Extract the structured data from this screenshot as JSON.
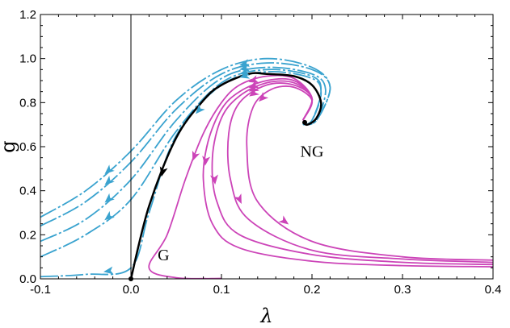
{
  "chart_data": {
    "type": "line",
    "title": "",
    "xlabel": "λ",
    "ylabel": "g",
    "xlim": [
      -0.1,
      0.4
    ],
    "ylim": [
      0.0,
      1.2
    ],
    "x_ticks": [
      "-0.1",
      "0.0",
      "0.1",
      "0.2",
      "0.3",
      "0.4"
    ],
    "x_tick_values": [
      -0.1,
      0.0,
      0.1,
      0.2,
      0.3,
      0.4
    ],
    "y_ticks": [
      "0.0",
      "0.2",
      "0.4",
      "0.6",
      "0.8",
      "1.0",
      "1.2"
    ],
    "y_tick_values": [
      0.0,
      0.2,
      0.4,
      0.6,
      0.8,
      1.0,
      1.2
    ],
    "grid": false,
    "annotations": [
      {
        "text": "NG",
        "x": 0.2,
        "y": 0.555
      },
      {
        "text": "G",
        "x": 0.036,
        "y": 0.085
      }
    ],
    "colors": {
      "uv_trajectory": "#000000",
      "blue_flows": "#3aa3cf",
      "magenta_flows": "#cc44b8"
    },
    "series": [
      {
        "group": "blue",
        "points": [
          [
            -0.1,
            0.28
          ],
          [
            -0.05,
            0.4
          ],
          [
            0.0,
            0.58
          ],
          [
            0.05,
            0.81
          ],
          [
            0.1,
            0.95
          ],
          [
            0.15,
            1.0
          ],
          [
            0.2,
            0.96
          ],
          [
            0.22,
            0.87
          ],
          [
            0.205,
            0.72
          ],
          [
            0.19,
            0.7
          ]
        ]
      },
      {
        "group": "blue",
        "points": [
          [
            -0.1,
            0.24
          ],
          [
            -0.05,
            0.35
          ],
          [
            0.0,
            0.53
          ],
          [
            0.05,
            0.77
          ],
          [
            0.1,
            0.93
          ],
          [
            0.15,
            0.98
          ],
          [
            0.2,
            0.95
          ],
          [
            0.22,
            0.87
          ],
          [
            0.205,
            0.72
          ],
          [
            0.19,
            0.7
          ]
        ]
      },
      {
        "group": "blue",
        "points": [
          [
            -0.1,
            0.17
          ],
          [
            -0.05,
            0.27
          ],
          [
            0.0,
            0.45
          ],
          [
            0.05,
            0.72
          ],
          [
            0.1,
            0.91
          ],
          [
            0.15,
            0.96
          ],
          [
            0.2,
            0.93
          ],
          [
            0.215,
            0.86
          ],
          [
            0.205,
            0.72
          ],
          [
            0.19,
            0.7
          ]
        ]
      },
      {
        "group": "blue",
        "points": [
          [
            -0.1,
            0.1
          ],
          [
            -0.05,
            0.2
          ],
          [
            0.0,
            0.36
          ],
          [
            0.05,
            0.67
          ],
          [
            0.1,
            0.89
          ],
          [
            0.15,
            0.95
          ],
          [
            0.2,
            0.92
          ],
          [
            0.21,
            0.85
          ],
          [
            0.2,
            0.72
          ],
          [
            0.19,
            0.7
          ]
        ]
      },
      {
        "group": "blue",
        "points": [
          [
            -0.1,
            0.01
          ],
          [
            -0.05,
            0.02
          ],
          [
            0.0,
            0.05
          ],
          [
            0.02,
            0.3
          ],
          [
            0.05,
            0.65
          ],
          [
            0.1,
            0.88
          ],
          [
            0.15,
            0.94
          ],
          [
            0.2,
            0.91
          ],
          [
            0.21,
            0.84
          ],
          [
            0.2,
            0.72
          ],
          [
            0.19,
            0.7
          ]
        ]
      },
      {
        "group": "black",
        "points": [
          [
            0.0,
            0.0
          ],
          [
            0.02,
            0.33
          ],
          [
            0.05,
            0.64
          ],
          [
            0.08,
            0.81
          ],
          [
            0.1,
            0.88
          ],
          [
            0.13,
            0.93
          ],
          [
            0.15,
            0.93
          ],
          [
            0.18,
            0.92
          ],
          [
            0.2,
            0.88
          ],
          [
            0.21,
            0.8
          ],
          [
            0.205,
            0.73
          ],
          [
            0.195,
            0.7
          ],
          [
            0.19,
            0.71
          ]
        ]
      },
      {
        "group": "magenta",
        "points": [
          [
            0.19,
            0.72
          ],
          [
            0.2,
            0.82
          ],
          [
            0.18,
            0.91
          ],
          [
            0.15,
            0.92
          ],
          [
            0.12,
            0.88
          ],
          [
            0.1,
            0.8
          ],
          [
            0.08,
            0.66
          ],
          [
            0.06,
            0.45
          ],
          [
            0.04,
            0.2
          ],
          [
            0.02,
            0.05
          ],
          [
            0.05,
            0.005
          ],
          [
            0.1,
            0.002
          ]
        ]
      },
      {
        "group": "magenta",
        "points": [
          [
            0.19,
            0.72
          ],
          [
            0.2,
            0.82
          ],
          [
            0.18,
            0.9
          ],
          [
            0.15,
            0.9
          ],
          [
            0.12,
            0.85
          ],
          [
            0.1,
            0.77
          ],
          [
            0.085,
            0.62
          ],
          [
            0.08,
            0.45
          ],
          [
            0.09,
            0.25
          ],
          [
            0.12,
            0.14
          ],
          [
            0.2,
            0.08
          ],
          [
            0.3,
            0.06
          ],
          [
            0.4,
            0.055
          ]
        ]
      },
      {
        "group": "magenta",
        "points": [
          [
            0.19,
            0.72
          ],
          [
            0.2,
            0.82
          ],
          [
            0.18,
            0.89
          ],
          [
            0.15,
            0.89
          ],
          [
            0.12,
            0.83
          ],
          [
            0.1,
            0.73
          ],
          [
            0.09,
            0.55
          ],
          [
            0.095,
            0.35
          ],
          [
            0.12,
            0.2
          ],
          [
            0.2,
            0.11
          ],
          [
            0.3,
            0.075
          ],
          [
            0.4,
            0.065
          ]
        ]
      },
      {
        "group": "magenta",
        "points": [
          [
            0.19,
            0.72
          ],
          [
            0.2,
            0.82
          ],
          [
            0.18,
            0.88
          ],
          [
            0.15,
            0.88
          ],
          [
            0.12,
            0.8
          ],
          [
            0.108,
            0.66
          ],
          [
            0.11,
            0.45
          ],
          [
            0.13,
            0.27
          ],
          [
            0.2,
            0.13
          ],
          [
            0.3,
            0.09
          ],
          [
            0.4,
            0.075
          ]
        ]
      },
      {
        "group": "magenta",
        "points": [
          [
            0.19,
            0.72
          ],
          [
            0.2,
            0.81
          ],
          [
            0.18,
            0.87
          ],
          [
            0.155,
            0.86
          ],
          [
            0.135,
            0.78
          ],
          [
            0.128,
            0.6
          ],
          [
            0.14,
            0.35
          ],
          [
            0.2,
            0.17
          ],
          [
            0.3,
            0.1
          ],
          [
            0.4,
            0.085
          ]
        ]
      }
    ]
  }
}
